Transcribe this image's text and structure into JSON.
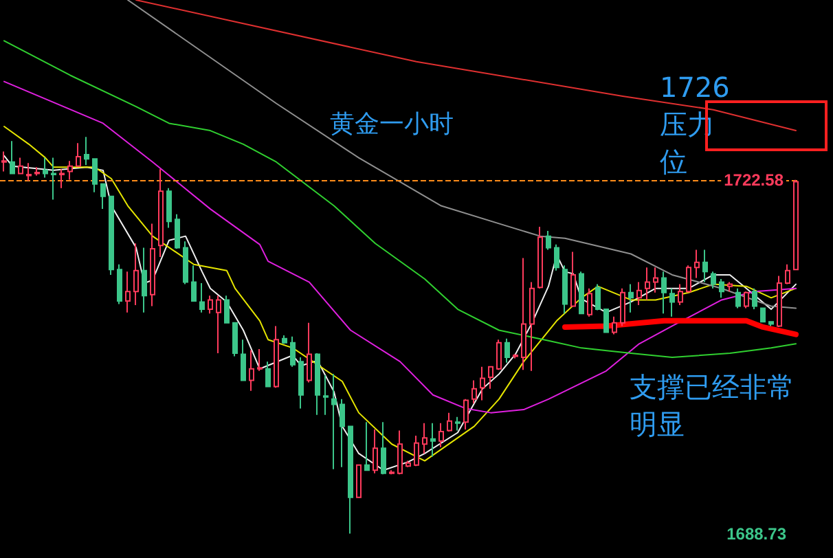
{
  "chart_data": {
    "type": "candlestick",
    "tick_labels": "y",
    "ylim": [
      1686.4,
      1739.8
    ],
    "yticks": [
      1688.73,
      1722.58
    ],
    "categories": [
      null,
      null,
      null,
      null,
      null,
      null,
      null,
      null,
      null,
      null,
      null,
      null,
      null,
      null,
      null,
      null,
      null,
      null,
      null,
      null,
      null,
      null,
      null,
      null,
      null,
      null,
      null,
      null,
      null,
      null,
      null,
      null,
      null,
      null,
      null,
      null,
      null,
      null,
      null,
      null,
      null,
      null,
      null,
      null,
      null,
      null,
      null,
      null,
      null,
      null,
      null,
      null,
      null,
      null,
      null,
      null,
      null,
      null,
      null,
      null,
      null,
      null,
      null,
      null,
      null,
      null,
      null,
      null,
      null,
      null,
      null,
      null,
      null,
      null,
      null,
      null,
      null,
      null,
      null,
      null,
      null,
      null,
      null,
      null,
      null,
      null,
      null,
      null,
      null,
      null,
      null,
      null,
      null,
      null,
      null,
      null,
      null
    ],
    "ohlc": [
      [
        1724.3,
        1725.3,
        1723.4,
        1724.4
      ],
      [
        1724.3,
        1726.3,
        1723.2,
        1723.2
      ],
      [
        1723.2,
        1724.7,
        1723.2,
        1723.9
      ],
      [
        1723.0,
        1724.2,
        1722.5,
        1723.1
      ],
      [
        1723.2,
        1723.8,
        1723.0,
        1723.3
      ],
      [
        1723.5,
        1724.7,
        1722.8,
        1723.2
      ],
      [
        1723.2,
        1724.7,
        1720.7,
        1723.1
      ],
      [
        1723.1,
        1723.6,
        1721.8,
        1723.2
      ],
      [
        1723.4,
        1724.4,
        1722.6,
        1723.9
      ],
      [
        1723.9,
        1726.1,
        1723.9,
        1724.8
      ],
      [
        1725.0,
        1726.7,
        1724.0,
        1724.6
      ],
      [
        1724.6,
        1724.6,
        1721.4,
        1722.2
      ],
      [
        1722.2,
        1722.2,
        1719.8,
        1721.0
      ],
      [
        1721.0,
        1721.0,
        1713.5,
        1714.0
      ],
      [
        1714.0,
        1714.5,
        1710.7,
        1711.0
      ],
      [
        1711.0,
        1713.8,
        1709.9,
        1711.9
      ],
      [
        1711.9,
        1716.5,
        1710.6,
        1713.9
      ],
      [
        1713.9,
        1716.1,
        1709.9,
        1711.5
      ],
      [
        1711.6,
        1718.4,
        1710.5,
        1716.0
      ],
      [
        1716.3,
        1723.6,
        1715.2,
        1721.5
      ],
      [
        1721.5,
        1721.8,
        1718.0,
        1718.6
      ],
      [
        1718.8,
        1719.3,
        1716.0,
        1716.1
      ],
      [
        1716.1,
        1716.7,
        1712.6,
        1712.8
      ],
      [
        1712.8,
        1714.4,
        1711.0,
        1711.0
      ],
      [
        1710.9,
        1712.7,
        1709.9,
        1710.2
      ],
      [
        1710.2,
        1711.5,
        1709.8,
        1711.1
      ],
      [
        1709.9,
        1711.5,
        1706.0,
        1711.1
      ],
      [
        1711.1,
        1711.5,
        1708.9,
        1708.9
      ],
      [
        1708.9,
        1708.9,
        1705.7,
        1706.0
      ],
      [
        1705.9,
        1707.3,
        1703.4,
        1703.4
      ],
      [
        1703.4,
        1706.3,
        1702.4,
        1704.5
      ],
      [
        1704.5,
        1706.4,
        1704.3,
        1704.6
      ],
      [
        1704.5,
        1705.2,
        1702.8,
        1702.8
      ],
      [
        1702.8,
        1708.6,
        1702.7,
        1707.3
      ],
      [
        1707.4,
        1707.7,
        1706.9,
        1707.0
      ],
      [
        1707.0,
        1707.6,
        1704.7,
        1704.9
      ],
      [
        1705.2,
        1705.6,
        1700.7,
        1702.0
      ],
      [
        1703.4,
        1708.9,
        1703.2,
        1705.9
      ],
      [
        1705.9,
        1706.0,
        1700.1,
        1702.0
      ],
      [
        1701.9,
        1703.9,
        1700.1,
        1701.8
      ],
      [
        1701.6,
        1704.0,
        1694.9,
        1701.1
      ],
      [
        1701.1,
        1701.6,
        1695.1,
        1699.0
      ],
      [
        1699.0,
        1699.0,
        1688.73,
        1692.2
      ],
      [
        1692.2,
        1695.3,
        1692.2,
        1695.3
      ],
      [
        1695.3,
        1699.4,
        1694.8,
        1694.8
      ],
      [
        1694.8,
        1698.7,
        1694.5,
        1696.9
      ],
      [
        1696.9,
        1699.4,
        1694.4,
        1694.5
      ],
      [
        1694.5,
        1694.8,
        1694.4,
        1694.6
      ],
      [
        1694.5,
        1698.6,
        1694.4,
        1697.3
      ],
      [
        1695.2,
        1695.7,
        1695.1,
        1695.5
      ],
      [
        1695.3,
        1698.1,
        1695.2,
        1697.4
      ],
      [
        1697.3,
        1699.3,
        1696.4,
        1697.9
      ],
      [
        1697.8,
        1699.3,
        1696.1,
        1697.6
      ],
      [
        1697.6,
        1699.3,
        1697.0,
        1698.5
      ],
      [
        1698.6,
        1700.3,
        1698.5,
        1699.5
      ],
      [
        1699.4,
        1699.9,
        1698.6,
        1699.3
      ],
      [
        1699.4,
        1701.6,
        1698.7,
        1701.5
      ],
      [
        1701.6,
        1703.4,
        1701.2,
        1702.6
      ],
      [
        1702.7,
        1704.7,
        1701.5,
        1703.6
      ],
      [
        1703.7,
        1704.7,
        1702.6,
        1704.7
      ],
      [
        1704.5,
        1707.3,
        1704.4,
        1707.0
      ],
      [
        1707.0,
        1707.4,
        1705.1,
        1705.6
      ],
      [
        1705.7,
        1705.9,
        1705.5,
        1705.8
      ],
      [
        1705.6,
        1715.1,
        1704.4,
        1708.8
      ],
      [
        1708.8,
        1712.8,
        1704.3,
        1712.2
      ],
      [
        1712.3,
        1718.1,
        1712.2,
        1717.1
      ],
      [
        1717.2,
        1717.7,
        1715.9,
        1716.1
      ],
      [
        1716.1,
        1716.4,
        1713.9,
        1714.2
      ],
      [
        1714.0,
        1714.4,
        1709.8,
        1710.7
      ],
      [
        1710.5,
        1715.7,
        1710.5,
        1713.5
      ],
      [
        1713.6,
        1713.8,
        1709.8,
        1709.8
      ],
      [
        1709.7,
        1712.2,
        1709.5,
        1711.7
      ],
      [
        1712.3,
        1712.6,
        1710.1,
        1710.2
      ],
      [
        1710.2,
        1710.2,
        1708.0,
        1708.0
      ],
      [
        1708.0,
        1709.5,
        1707.8,
        1708.9
      ],
      [
        1708.9,
        1712.2,
        1708.6,
        1711.8
      ],
      [
        1711.8,
        1712.6,
        1709.9,
        1711.3
      ],
      [
        1711.3,
        1712.8,
        1710.6,
        1712.0
      ],
      [
        1712.2,
        1714.2,
        1711.1,
        1712.8
      ],
      [
        1712.8,
        1714.2,
        1711.8,
        1713.2
      ],
      [
        1713.2,
        1713.8,
        1709.8,
        1711.8
      ],
      [
        1711.7,
        1712.2,
        1709.5,
        1710.9
      ],
      [
        1710.9,
        1712.6,
        1710.6,
        1711.9
      ],
      [
        1711.9,
        1714.4,
        1711.8,
        1714.2
      ],
      [
        1714.2,
        1715.9,
        1713.2,
        1714.7
      ],
      [
        1714.7,
        1715.9,
        1712.8,
        1713.8
      ],
      [
        1713.6,
        1713.8,
        1712.2,
        1712.6
      ],
      [
        1712.8,
        1713.1,
        1711.3,
        1711.9
      ],
      [
        1712.4,
        1712.8,
        1711.9,
        1712.6
      ],
      [
        1711.8,
        1712.2,
        1710.3,
        1710.5
      ],
      [
        1710.5,
        1711.9,
        1710.3,
        1711.8
      ],
      [
        1711.9,
        1712.2,
        1710.2,
        1710.5
      ],
      [
        1710.3,
        1710.3,
        1709.0,
        1709.0
      ],
      [
        1709.0,
        1709.0,
        1708.6,
        1708.8
      ],
      [
        1708.6,
        1713.4,
        1708.5,
        1712.7
      ],
      [
        1712.7,
        1714.5,
        1712.6,
        1713.9
      ],
      [
        1714.0,
        1722.58,
        1714.0,
        1722.4
      ]
    ],
    "series": [
      {
        "type": "line",
        "color": "#f0f0f0",
        "values": [
          1724.9,
          1723.9,
          null,
          null,
          null,
          null,
          1723.5,
          null,
          null,
          null,
          1723.8,
          null,
          1723.5,
          1720.1,
          null,
          null,
          1716.1,
          1712.7,
          1713.0,
          null,
          1716.8,
          null,
          1717.2,
          null,
          1713.8,
          1712.2,
          null,
          1710.9,
          null,
          1708.2,
          null,
          1704.5,
          null,
          null,
          null,
          1705.8,
          1704.8,
          null,
          1705.3,
          null,
          1702.3,
          1699.0,
          null,
          1696.4,
          null,
          null,
          1694.8,
          null,
          null,
          1695.6,
          null,
          1696.4,
          null,
          null,
          null,
          1698.4,
          null,
          null,
          1702.6,
          null,
          1704.0,
          null,
          1705.9,
          null,
          1708.9,
          null,
          1712.4,
          1715.4,
          1713.8,
          1713.6,
          1711.2,
          null,
          null,
          1709.9,
          null,
          null,
          1710.9,
          null,
          null,
          1712.2,
          null,
          null,
          null,
          1712.2,
          null,
          null,
          1713.5,
          null,
          1713.5,
          null,
          1712.2,
          null,
          null,
          1710.2,
          null,
          null,
          1712.6
        ]
      },
      {
        "type": "line",
        "color": "#e6e600",
        "values": [
          1727.7,
          null,
          null,
          1726.0,
          null,
          1724.7,
          1723.8,
          null,
          null,
          null,
          null,
          1723.8,
          null,
          1722.7,
          null,
          1720.1,
          null,
          null,
          1717.2,
          null,
          null,
          null,
          null,
          1714.5,
          null,
          null,
          null,
          1713.9,
          1712.2,
          null,
          null,
          1709.1,
          1707.3,
          null,
          null,
          1706.5,
          null,
          null,
          null,
          null,
          null,
          1703.3,
          null,
          1700.3,
          null,
          null,
          null,
          1697.3,
          null,
          null,
          null,
          1695.7,
          null,
          1696.8,
          null,
          null,
          null,
          1699.0,
          null,
          null,
          1701.6,
          null,
          null,
          1705.2,
          null,
          null,
          null,
          1709.1,
          null,
          null,
          1711.3,
          null,
          1712.4,
          null,
          null,
          null,
          1711.1,
          null,
          null,
          1711.1,
          null,
          null,
          null,
          1711.8,
          null,
          null,
          1712.6,
          null,
          null,
          null,
          1712.4,
          null,
          null,
          1711.3,
          null,
          null,
          1712.2
        ]
      },
      {
        "type": "line",
        "color": "#e020e0",
        "values": [
          1732.0,
          null,
          null,
          null,
          null,
          null,
          null,
          null,
          null,
          null,
          null,
          null,
          1728.0,
          null,
          null,
          null,
          null,
          null,
          1724.3,
          null,
          null,
          null,
          null,
          null,
          null,
          1719.8,
          null,
          null,
          null,
          null,
          null,
          1716.4,
          1714.8,
          null,
          null,
          null,
          null,
          1712.8,
          null,
          null,
          null,
          null,
          1708.2,
          null,
          null,
          null,
          null,
          null,
          1705.2,
          null,
          null,
          null,
          1702.0,
          null,
          null,
          null,
          1700.7,
          null,
          null,
          1700.3,
          null,
          null,
          null,
          1700.6,
          null,
          null,
          1701.6,
          null,
          null,
          null,
          null,
          null,
          null,
          1704.3,
          null,
          null,
          null,
          1706.9,
          null,
          null,
          null,
          1708.6,
          null,
          null,
          null,
          null,
          null,
          1711.1,
          null,
          null,
          null,
          1711.9,
          null,
          null,
          null,
          null,
          1712.2
        ]
      },
      {
        "type": "line",
        "color": "#30d030",
        "values": [
          1735.9,
          null,
          null,
          null,
          null,
          null,
          null,
          null,
          1732.6,
          null,
          null,
          null,
          null,
          null,
          null,
          null,
          1729.6,
          null,
          null,
          null,
          1728.0,
          null,
          null,
          null,
          null,
          1727.3,
          null,
          null,
          null,
          1726.0,
          null,
          null,
          null,
          1724.3,
          null,
          null,
          null,
          null,
          null,
          null,
          1720.1,
          null,
          null,
          null,
          null,
          1716.5,
          null,
          null,
          null,
          null,
          null,
          1713.1,
          null,
          null,
          null,
          1710.2,
          null,
          null,
          null,
          null,
          1708.2,
          null,
          null,
          null,
          null,
          null,
          1707.2,
          null,
          null,
          null,
          1706.5,
          null,
          null,
          null,
          null,
          null,
          1706.0,
          null,
          null,
          null,
          null,
          1705.6,
          null,
          null,
          null,
          null,
          null,
          null,
          1706.0,
          null,
          null,
          null,
          null,
          1706.5,
          null,
          null,
          1706.9
        ]
      },
      {
        "type": "line",
        "color": "#909090",
        "values": [
          null,
          null,
          null,
          null,
          null,
          null,
          null,
          null,
          null,
          null,
          null,
          null,
          null,
          null,
          null,
          1739.8,
          null,
          null,
          null,
          null,
          null,
          null,
          null,
          null,
          null,
          null,
          null,
          null,
          null,
          null,
          null,
          null,
          null,
          1729.9,
          null,
          null,
          null,
          null,
          null,
          null,
          null,
          null,
          null,
          1724.7,
          null,
          null,
          null,
          null,
          null,
          null,
          null,
          null,
          null,
          1720.1,
          null,
          null,
          null,
          null,
          null,
          null,
          1718.4,
          null,
          null,
          null,
          null,
          1717.2,
          null,
          null,
          1717.0,
          null,
          null,
          null,
          null,
          null,
          null,
          null,
          1715.5,
          null,
          null,
          null,
          null,
          1713.5,
          null,
          null,
          null,
          null,
          null,
          1712.2,
          null,
          null,
          null,
          null,
          null,
          1710.5,
          null,
          null,
          1710.3
        ]
      },
      {
        "type": "line",
        "color": "#e03030",
        "values": [
          null,
          null,
          null,
          null,
          null,
          null,
          null,
          null,
          null,
          null,
          null,
          null,
          null,
          null,
          null,
          null,
          1739.8,
          null,
          null,
          null,
          null,
          null,
          null,
          null,
          null,
          null,
          null,
          null,
          null,
          null,
          null,
          null,
          null,
          null,
          null,
          null,
          null,
          null,
          null,
          null,
          null,
          null,
          null,
          null,
          null,
          null,
          null,
          null,
          null,
          null,
          1733.9,
          null,
          null,
          null,
          null,
          null,
          null,
          null,
          null,
          null,
          null,
          null,
          null,
          null,
          null,
          null,
          null,
          null,
          null,
          null,
          null,
          null,
          null,
          null,
          null,
          1730.6,
          null,
          null,
          null,
          null,
          null,
          null,
          null,
          null,
          null,
          null,
          1729.3,
          null,
          null,
          null,
          null,
          null,
          null,
          null,
          null,
          null,
          1727.3
        ]
      },
      {
        "type": "line",
        "color": "#ff0000",
        "values": [
          null,
          null,
          null,
          null,
          null,
          null,
          null,
          null,
          null,
          null,
          null,
          null,
          null,
          null,
          null,
          null,
          null,
          null,
          null,
          null,
          null,
          null,
          null,
          null,
          null,
          null,
          null,
          null,
          null,
          null,
          null,
          null,
          null,
          null,
          null,
          null,
          null,
          null,
          null,
          null,
          null,
          null,
          null,
          null,
          null,
          null,
          null,
          null,
          null,
          null,
          null,
          null,
          null,
          null,
          null,
          null,
          null,
          null,
          null,
          null,
          null,
          null,
          null,
          null,
          null,
          null,
          null,
          null,
          1708.5,
          null,
          null,
          null,
          null,
          1708.6,
          null,
          null,
          null,
          null,
          null,
          null,
          1709.1,
          null,
          null,
          null,
          null,
          null,
          null,
          null,
          null,
          null,
          1709.1,
          null,
          1708.5,
          null,
          null,
          null,
          1707.8
        ]
      }
    ],
    "ref_lines": [
      {
        "axis": "y",
        "value": 1722.58,
        "color": "#ff8c1a",
        "line_style": "dashed"
      }
    ],
    "annotations": [
      "黄金一小时",
      "1726压力位",
      "支撑已经非常明显"
    ]
  }
}
